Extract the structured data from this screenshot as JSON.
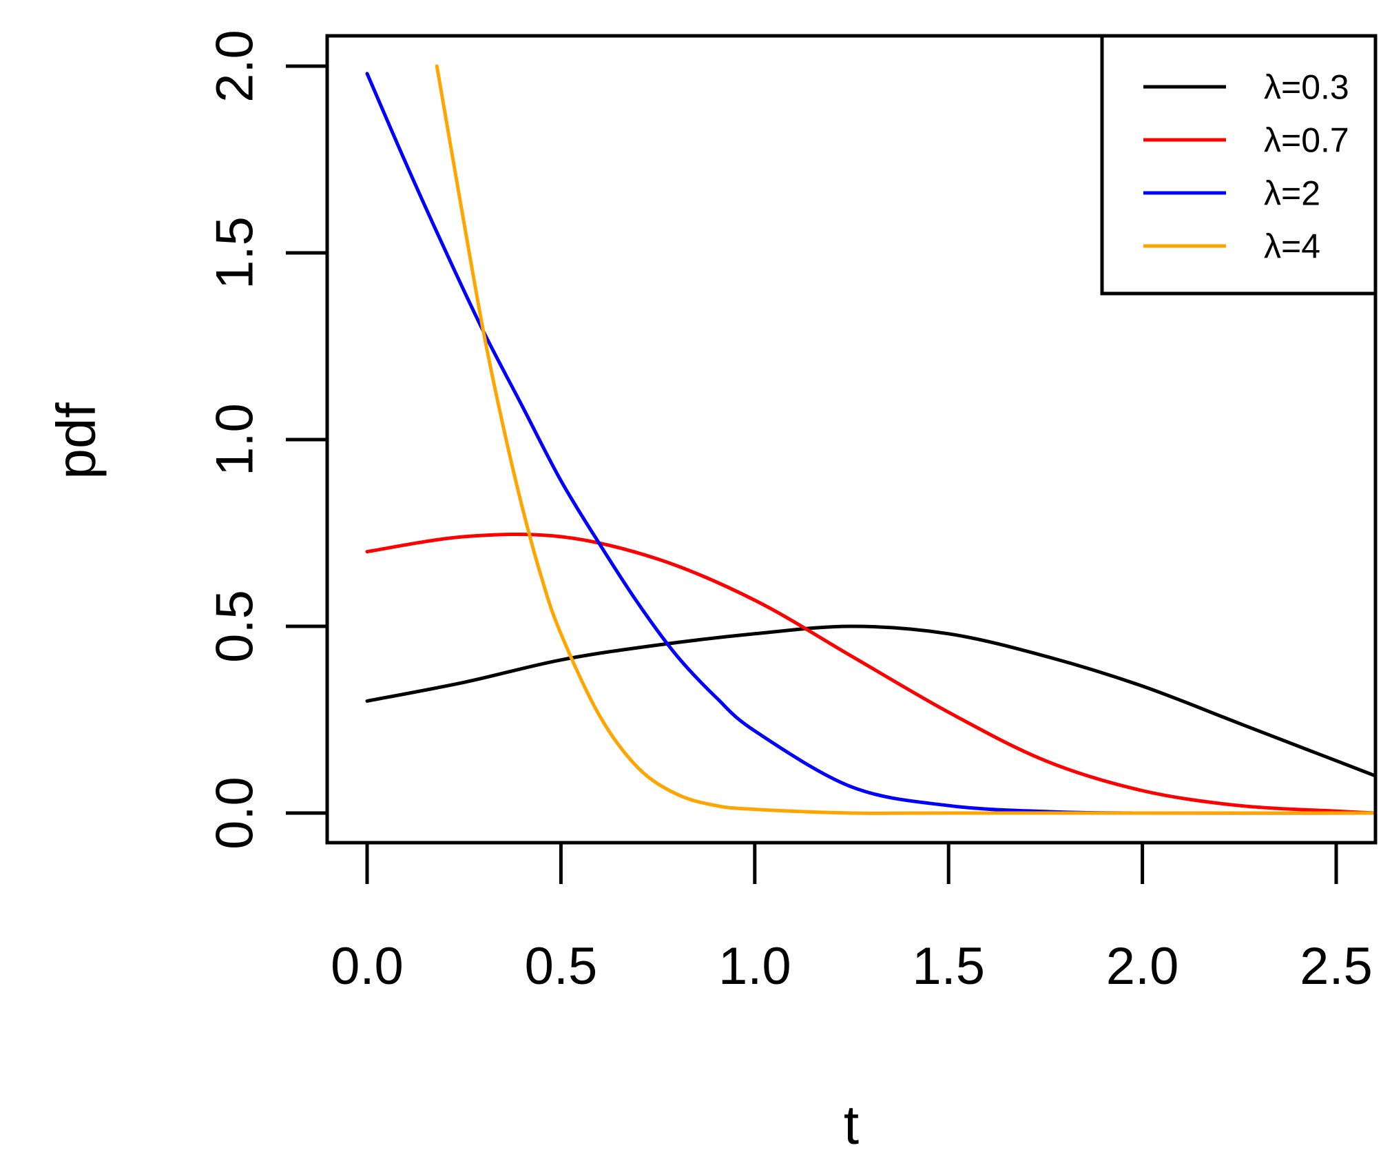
{
  "chart_data": {
    "type": "line",
    "title": "",
    "xlabel": "t",
    "ylabel": "pdf",
    "xlim": [
      0,
      2.6
    ],
    "ylim": [
      0,
      2.0
    ],
    "x_ticks": [
      "0.0",
      "0.5",
      "1.0",
      "1.5",
      "2.0",
      "2.5"
    ],
    "y_ticks": [
      "0.0",
      "0.5",
      "1.0",
      "1.5",
      "2.0"
    ],
    "grid": false,
    "legend_position": "top-right",
    "series": [
      {
        "name": "λ=0.3",
        "color": "#000000",
        "x": [
          0.0,
          0.25,
          0.5,
          0.75,
          1.0,
          1.25,
          1.5,
          1.75,
          2.0,
          2.25,
          2.5,
          2.6
        ],
        "y": [
          0.3,
          0.35,
          0.41,
          0.45,
          0.48,
          0.5,
          0.48,
          0.42,
          0.34,
          0.24,
          0.14,
          0.1
        ]
      },
      {
        "name": "λ=0.7",
        "color": "#ff0000",
        "x": [
          0.0,
          0.25,
          0.5,
          0.75,
          1.0,
          1.25,
          1.5,
          1.75,
          2.0,
          2.25,
          2.5,
          2.6
        ],
        "y": [
          0.7,
          0.74,
          0.74,
          0.68,
          0.57,
          0.42,
          0.27,
          0.14,
          0.06,
          0.02,
          0.005,
          0.0
        ]
      },
      {
        "name": "λ=2",
        "color": "#0000ff",
        "x": [
          0.0,
          0.1,
          0.2,
          0.3,
          0.4,
          0.5,
          0.6,
          0.7,
          0.8,
          0.9,
          1.0,
          1.25,
          1.5,
          1.75,
          2.0,
          2.6
        ],
        "y": [
          1.98,
          1.74,
          1.51,
          1.29,
          1.09,
          0.89,
          0.72,
          0.56,
          0.42,
          0.31,
          0.22,
          0.07,
          0.02,
          0.004,
          0.0,
          0.0
        ]
      },
      {
        "name": "λ=4",
        "color": "#ffa500",
        "x": [
          0.18,
          0.25,
          0.3,
          0.35,
          0.4,
          0.45,
          0.5,
          0.6,
          0.7,
          0.8,
          0.9,
          1.0,
          1.25,
          1.5,
          2.6
        ],
        "y": [
          2.0,
          1.58,
          1.29,
          1.04,
          0.82,
          0.63,
          0.48,
          0.26,
          0.12,
          0.05,
          0.02,
          0.01,
          0.0,
          0.0,
          0.0
        ]
      }
    ]
  }
}
